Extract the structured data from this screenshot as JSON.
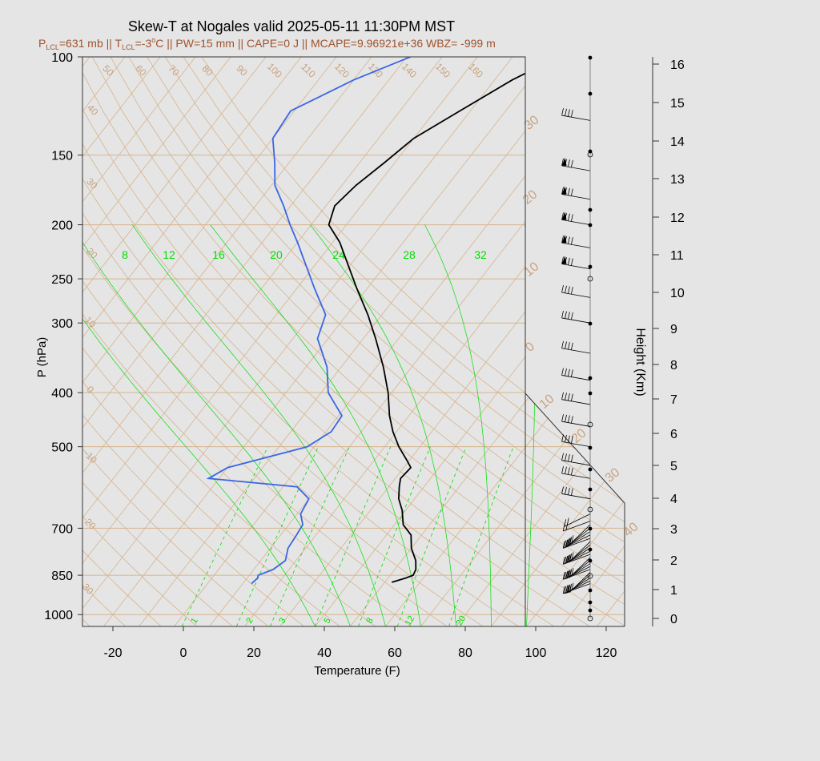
{
  "title": "Skew-T at Nogales valid 2025-05-11 11:30PM MST",
  "subtitle_parts": {
    "p_lcl": "=631 mb || T",
    "lcl_sub": "LCL",
    "t_lcl_val": "=-3",
    "deg": "o",
    "rest": "C || PW=15 mm || CAPE=0 J || MCAPE=9.96921e+36 WBZ= -999 m"
  },
  "colors": {
    "temperature": "#000000",
    "dewpoint": "#3a66e6",
    "isotherms": "#d6b48c",
    "mixing_ratio": "#00dd00",
    "background": "#e5e5e5"
  },
  "chart_data": {
    "type": "line",
    "x_axis": {
      "label": "Temperature (F)",
      "ticks": [
        -20,
        0,
        20,
        40,
        60,
        80,
        100,
        120
      ],
      "range": [
        -28,
        125
      ]
    },
    "y_axis": {
      "label": "P (hPa)",
      "scale": "log",
      "ticks": [
        100,
        150,
        200,
        250,
        300,
        400,
        500,
        700,
        850,
        1000
      ],
      "range": [
        100,
        1050
      ]
    },
    "height_axis": {
      "label": "Height (Km)",
      "ticks": [
        0,
        1,
        2,
        3,
        4,
        5,
        6,
        7,
        8,
        9,
        10,
        11,
        12,
        13,
        14,
        15,
        16
      ]
    },
    "isotherm_labels": [
      "50",
      "60",
      "70",
      "80",
      "90",
      "100",
      "110",
      "120",
      "130",
      "140",
      "150",
      "160"
    ],
    "isotherm_left_labels": [
      "40",
      "30",
      "20",
      "10",
      "0",
      "-10",
      "20",
      "30"
    ],
    "dry_adiabat_labels": [
      "30",
      "20",
      "10",
      "0",
      "10",
      "20",
      "30",
      "40"
    ],
    "mixing_ratio_top_labels": [
      "8",
      "12",
      "16",
      "20",
      "24",
      "28",
      "32"
    ],
    "mixing_ratio_bottom_labels": [
      "1",
      "2",
      "3",
      "5",
      "8",
      "12",
      "20"
    ],
    "series": [
      {
        "key": "temperature",
        "pressure": [
          875,
          860,
          850,
          830,
          800,
          760,
          720,
          690,
          650,
          620,
          590,
          570,
          545,
          530,
          500,
          470,
          440,
          400,
          360,
          320,
          290,
          260,
          235,
          215,
          200,
          185,
          170,
          155,
          140,
          125,
          110,
          100
        ],
        "temp_f": [
          52,
          55,
          56.5,
          56,
          54,
          50,
          47,
          42.5,
          39,
          35.5,
          33,
          31.5,
          32,
          29.5,
          24,
          19,
          14.5,
          9,
          2,
          -6.5,
          -14,
          -23,
          -31,
          -38,
          -45,
          -47.5,
          -46,
          -43,
          -40,
          -33,
          -25,
          -17
        ]
      },
      {
        "key": "dewpoint",
        "pressure": [
          880,
          860,
          850,
          830,
          800,
          760,
          720,
          690,
          660,
          620,
          590,
          570,
          545,
          500,
          470,
          440,
          400,
          360,
          320,
          290,
          260,
          235,
          215,
          200,
          185,
          170,
          155,
          140,
          125,
          110,
          100
        ],
        "temp_f": [
          12.5,
          13,
          12.5,
          15.5,
          17,
          15,
          14.5,
          14,
          11,
          10,
          4,
          -23,
          -20,
          -2,
          1.5,
          1,
          -8,
          -14,
          -23,
          -26,
          -35,
          -43,
          -50,
          -56,
          -62,
          -69,
          -74,
          -80,
          -81,
          -70,
          -59
        ]
      }
    ],
    "wind_barb_pressures": [
      880,
      870,
      860,
      850,
      840,
      830,
      820,
      810,
      800,
      790,
      780,
      770,
      760,
      750,
      740,
      730,
      720,
      710,
      700,
      690,
      680,
      660,
      620,
      570,
      540,
      500,
      460,
      420,
      380,
      340,
      300,
      270,
      240,
      220,
      200,
      180,
      160,
      130
    ],
    "wind_barb_height_marks_km": [
      0,
      0.5,
      1,
      1.5,
      2,
      2.5,
      3,
      4,
      5,
      6,
      7,
      8,
      9,
      10,
      11,
      12,
      13,
      14,
      15,
      16
    ]
  }
}
